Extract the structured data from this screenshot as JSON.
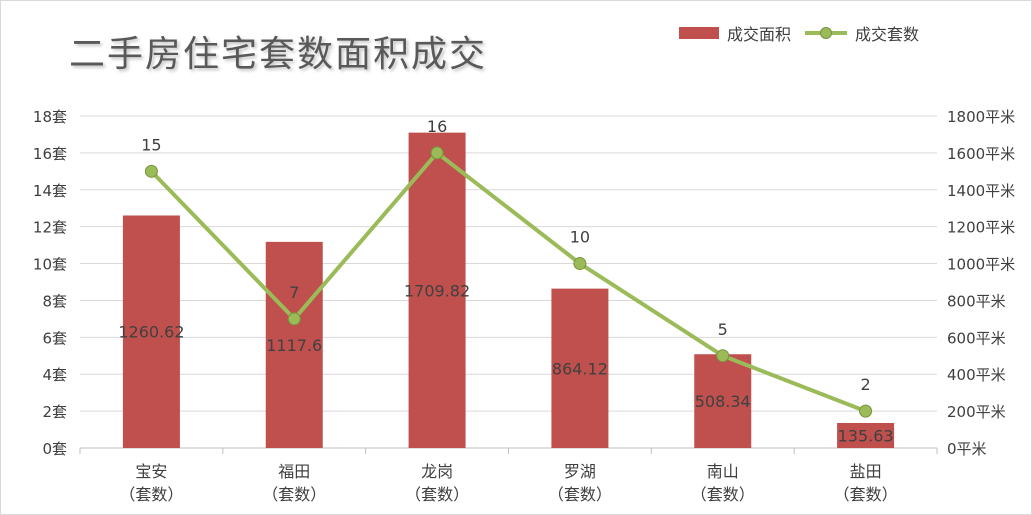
{
  "title": "二手房住宅套数面积成交",
  "legend": {
    "area_label": "成交面积",
    "count_label": "成交套数"
  },
  "colors": {
    "bar": "#c0504d",
    "line": "#9bbb59",
    "grid": "#d9d9d9",
    "text": "#404040"
  },
  "chart_data": {
    "type": "bar",
    "categories": [
      "宝安\n（套数）",
      "福田\n（套数）",
      "龙岗\n（套数）",
      "罗湖\n（套数）",
      "南山\n（套数）",
      "盐田\n（套数）"
    ],
    "series": [
      {
        "name": "成交面积",
        "type": "bar",
        "axis": "right",
        "values": [
          1260.62,
          1117.6,
          1709.82,
          864.12,
          508.34,
          135.63
        ]
      },
      {
        "name": "成交套数",
        "type": "line",
        "axis": "left",
        "values": [
          15,
          7,
          16,
          10,
          5,
          2
        ]
      }
    ],
    "y_left": {
      "ylim": [
        0,
        18
      ],
      "ticks": [
        "0套",
        "2套",
        "4套",
        "6套",
        "8套",
        "10套",
        "12套",
        "14套",
        "16套",
        "18套"
      ]
    },
    "y_right": {
      "ylim": [
        0,
        1800
      ],
      "ticks": [
        "0平米",
        "200平米",
        "400平米",
        "600平米",
        "800平米",
        "1000平米",
        "1200平米",
        "1400平米",
        "1600平米",
        "1800平米"
      ]
    },
    "bar_labels": [
      "1260.62",
      "1117.6",
      "1709.82",
      "864.12",
      "508.34",
      "135.63"
    ],
    "line_labels": [
      "15",
      "7",
      "16",
      "10",
      "5",
      "2"
    ],
    "grid": true,
    "legend_position": "top-right"
  }
}
